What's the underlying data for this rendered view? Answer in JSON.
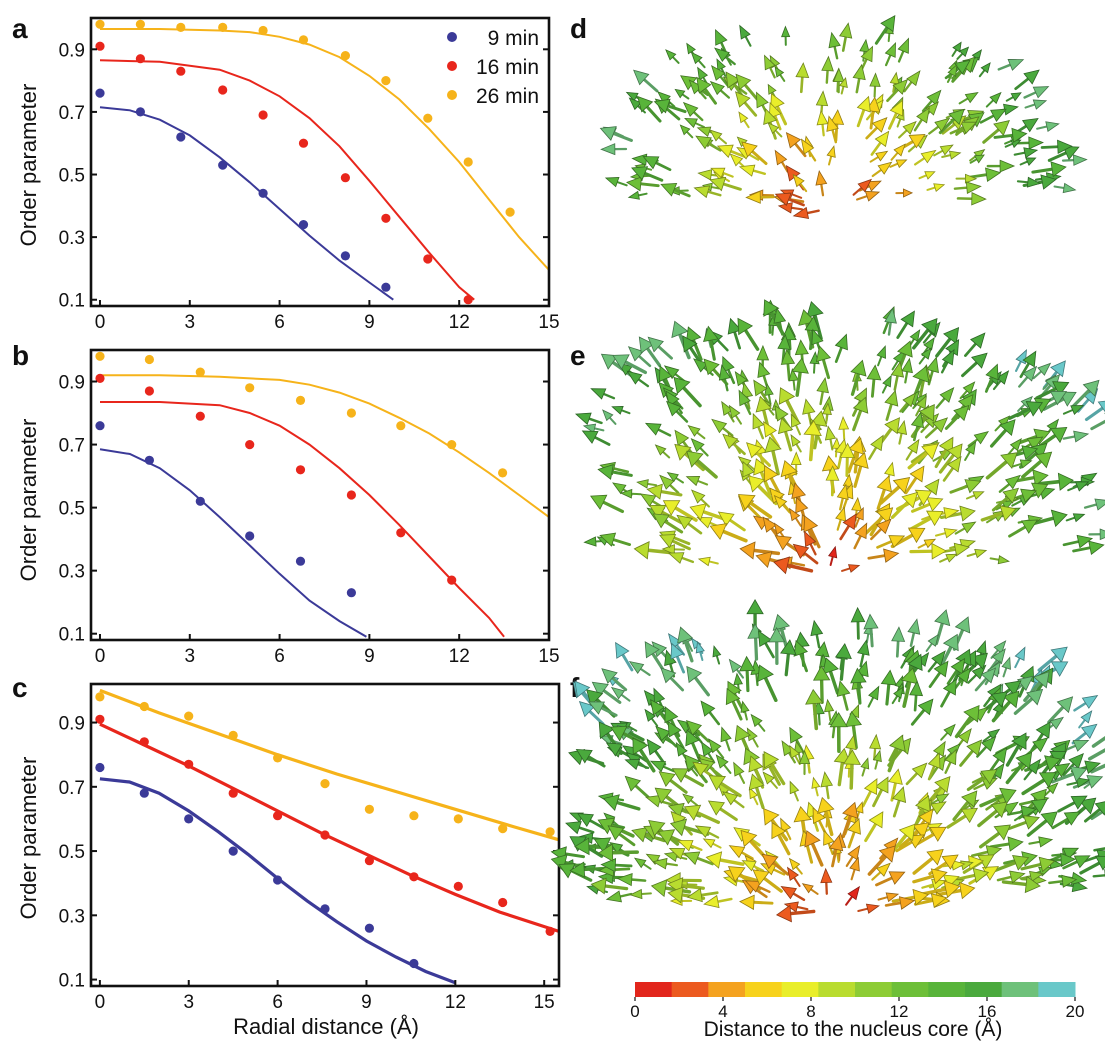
{
  "panel_letters": [
    "a",
    "b",
    "c",
    "d",
    "e",
    "f"
  ],
  "axis_labels": {
    "ylabel": "Order parameter",
    "xlabel": "Radial distance (Å)"
  },
  "colors": {
    "9 min": "#3b3a98",
    "16 min": "#e8261c",
    "26 min": "#f6b31a"
  },
  "colorbar": {
    "label": "Distance to the nucleus core (Å)",
    "tick_labels": [
      "0",
      "4",
      "8",
      "12",
      "16",
      "20"
    ],
    "range": [
      0,
      20
    ],
    "colors": [
      "#e2261c",
      "#ec5a1f",
      "#f4a21f",
      "#f7d21c",
      "#e9ee2a",
      "#b9dc2f",
      "#8dcc35",
      "#6dbf38",
      "#58b43a",
      "#4aa93d",
      "#6ec17a",
      "#69c8c9"
    ]
  },
  "vector_fields": [
    {
      "panel": "d",
      "description_icon": "arrow-field-icon"
    },
    {
      "panel": "e",
      "description_icon": "arrow-field-icon"
    },
    {
      "panel": "f",
      "description_icon": "arrow-field-icon"
    }
  ],
  "chart_data": [
    {
      "panel": "a",
      "type": "scatter",
      "xlabel": "",
      "ylabel": "Order parameter",
      "xlim": [
        -0.3,
        15
      ],
      "ylim": [
        0.08,
        1.0
      ],
      "xticks": [
        "0",
        "3",
        "6",
        "9",
        "12",
        "15"
      ],
      "yticks": [
        "0.1",
        "0.3",
        "0.5",
        "0.7",
        "0.9"
      ],
      "legend": "top-right",
      "series": [
        {
          "name": "9 min",
          "color": "#3b3a98",
          "x": [
            0,
            1.35,
            2.7,
            4.1,
            5.45,
            6.8,
            8.2,
            9.55
          ],
          "y": [
            0.76,
            0.7,
            0.62,
            0.53,
            0.44,
            0.34,
            0.24,
            0.14
          ],
          "fit_x": [
            0,
            1,
            2,
            3,
            4,
            5,
            6,
            7,
            8,
            9,
            9.8
          ],
          "fit_y": [
            0.715,
            0.705,
            0.675,
            0.625,
            0.555,
            0.475,
            0.39,
            0.305,
            0.225,
            0.155,
            0.1
          ]
        },
        {
          "name": "16 min",
          "color": "#e8261c",
          "x": [
            0,
            1.35,
            2.7,
            4.1,
            5.45,
            6.8,
            8.2,
            9.55,
            10.95,
            12.3
          ],
          "y": [
            0.91,
            0.87,
            0.83,
            0.77,
            0.69,
            0.6,
            0.49,
            0.36,
            0.23,
            0.1
          ],
          "fit_x": [
            0,
            2,
            4,
            5,
            6,
            7,
            8,
            9,
            10,
            11,
            12,
            12.5
          ],
          "fit_y": [
            0.865,
            0.86,
            0.835,
            0.8,
            0.75,
            0.68,
            0.59,
            0.48,
            0.365,
            0.25,
            0.14,
            0.1
          ]
        },
        {
          "name": "26 min",
          "color": "#f6b31a",
          "x": [
            0,
            1.35,
            2.7,
            4.1,
            5.45,
            6.8,
            8.2,
            9.55,
            10.95,
            12.3,
            13.7
          ],
          "y": [
            0.98,
            0.98,
            0.97,
            0.97,
            0.96,
            0.93,
            0.88,
            0.8,
            0.68,
            0.54,
            0.38
          ],
          "fit_x": [
            0,
            2,
            4,
            5,
            6,
            7,
            8,
            9,
            10,
            11,
            12,
            13,
            14,
            15
          ],
          "fit_y": [
            0.965,
            0.965,
            0.96,
            0.955,
            0.94,
            0.915,
            0.875,
            0.815,
            0.74,
            0.645,
            0.54,
            0.42,
            0.3,
            0.195
          ]
        }
      ]
    },
    {
      "panel": "b",
      "type": "scatter",
      "xlabel": "",
      "ylabel": "Order parameter",
      "xlim": [
        -0.3,
        15
      ],
      "ylim": [
        0.08,
        1.0
      ],
      "xticks": [
        "0",
        "3",
        "6",
        "9",
        "12",
        "15"
      ],
      "yticks": [
        "0.1",
        "0.3",
        "0.5",
        "0.7",
        "0.9"
      ],
      "series": [
        {
          "name": "9 min",
          "color": "#3b3a98",
          "x": [
            0,
            1.65,
            3.35,
            5.0,
            6.7,
            8.4
          ],
          "y": [
            0.76,
            0.65,
            0.52,
            0.41,
            0.33,
            0.23
          ],
          "fit_x": [
            0,
            1,
            2,
            3,
            4,
            5,
            6,
            7,
            8,
            8.9
          ],
          "fit_y": [
            0.685,
            0.67,
            0.625,
            0.555,
            0.47,
            0.38,
            0.29,
            0.205,
            0.14,
            0.09
          ]
        },
        {
          "name": "16 min",
          "color": "#e8261c",
          "x": [
            0,
            1.65,
            3.35,
            5.0,
            6.7,
            8.4,
            10.05,
            11.75
          ],
          "y": [
            0.91,
            0.87,
            0.79,
            0.7,
            0.62,
            0.54,
            0.42,
            0.27
          ],
          "fit_x": [
            0,
            2,
            4,
            5,
            6,
            7,
            8,
            9,
            10,
            11,
            12,
            13,
            13.5
          ],
          "fit_y": [
            0.835,
            0.835,
            0.825,
            0.8,
            0.76,
            0.7,
            0.625,
            0.54,
            0.445,
            0.345,
            0.245,
            0.15,
            0.09
          ]
        },
        {
          "name": "26 min",
          "color": "#f6b31a",
          "x": [
            0,
            1.65,
            3.35,
            5.0,
            6.7,
            8.4,
            10.05,
            11.75,
            13.45
          ],
          "y": [
            0.98,
            0.97,
            0.93,
            0.88,
            0.84,
            0.8,
            0.76,
            0.7,
            0.61
          ],
          "fit_x": [
            0,
            2,
            4,
            6,
            7,
            8,
            9,
            10,
            11,
            12,
            13,
            14,
            15
          ],
          "fit_y": [
            0.92,
            0.92,
            0.915,
            0.905,
            0.89,
            0.865,
            0.83,
            0.785,
            0.735,
            0.675,
            0.61,
            0.54,
            0.47
          ]
        }
      ]
    },
    {
      "panel": "c",
      "type": "scatter",
      "xlabel": "Radial distance (Å)",
      "ylabel": "Order parameter",
      "xlim": [
        -0.3,
        15.5
      ],
      "ylim": [
        0.08,
        1.02
      ],
      "xticks": [
        "0",
        "3",
        "6",
        "9",
        "12",
        "15"
      ],
      "yticks": [
        "0.1",
        "0.3",
        "0.5",
        "0.7",
        "0.9"
      ],
      "series": [
        {
          "name": "9 min",
          "color": "#3b3a98",
          "x": [
            0,
            1.5,
            3.0,
            4.5,
            6.0,
            7.6,
            9.1,
            10.6
          ],
          "y": [
            0.76,
            0.68,
            0.6,
            0.5,
            0.41,
            0.32,
            0.26,
            0.15
          ],
          "fit_x": [
            0,
            1,
            2,
            3,
            4,
            5,
            6,
            7,
            8,
            9,
            10,
            11,
            12
          ],
          "fit_y": [
            0.725,
            0.715,
            0.68,
            0.625,
            0.56,
            0.49,
            0.415,
            0.345,
            0.28,
            0.22,
            0.17,
            0.125,
            0.09
          ]
        },
        {
          "name": "16 min",
          "color": "#e8261c",
          "x": [
            0,
            1.5,
            3.0,
            4.5,
            6.0,
            7.6,
            9.1,
            10.6,
            12.1,
            13.6,
            15.2
          ],
          "y": [
            0.91,
            0.84,
            0.77,
            0.68,
            0.61,
            0.55,
            0.47,
            0.42,
            0.39,
            0.34,
            0.25
          ],
          "fit_x": [
            0,
            1.5,
            3,
            4.5,
            6,
            7.5,
            9,
            10.5,
            12,
            13.5,
            15.5
          ],
          "fit_y": [
            0.895,
            0.83,
            0.765,
            0.695,
            0.625,
            0.555,
            0.49,
            0.425,
            0.365,
            0.31,
            0.25
          ]
        },
        {
          "name": "26 min",
          "color": "#f6b31a",
          "x": [
            0,
            1.5,
            3.0,
            4.5,
            6.0,
            7.6,
            9.1,
            10.6,
            12.1,
            13.6,
            15.2
          ],
          "y": [
            0.98,
            0.95,
            0.92,
            0.86,
            0.79,
            0.71,
            0.63,
            0.61,
            0.6,
            0.57,
            0.56
          ],
          "fit_x": [
            0,
            2,
            4,
            6,
            8,
            10,
            12,
            14,
            15.5
          ],
          "fit_y": [
            1.0,
            0.93,
            0.865,
            0.8,
            0.74,
            0.685,
            0.63,
            0.575,
            0.535
          ]
        }
      ]
    }
  ]
}
